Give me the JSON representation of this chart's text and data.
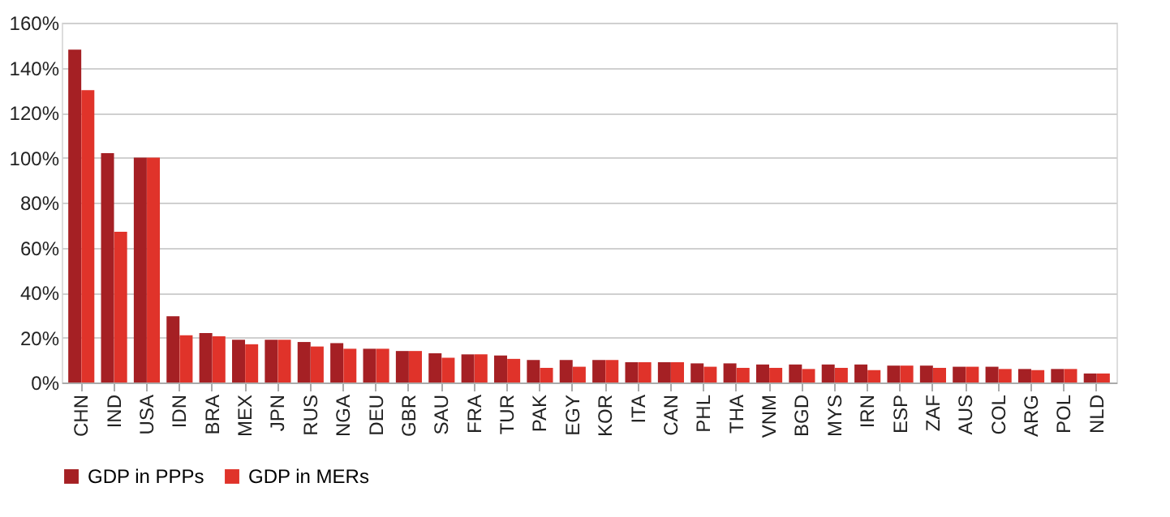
{
  "chart_data": {
    "type": "bar",
    "categories": [
      "CHN",
      "IND",
      "USA",
      "IDN",
      "BRA",
      "MEX",
      "JPN",
      "RUS",
      "NGA",
      "DEU",
      "GBR",
      "SAU",
      "FRA",
      "TUR",
      "PAK",
      "EGY",
      "KOR",
      "ITA",
      "CAN",
      "PHL",
      "THA",
      "VNM",
      "BGD",
      "MYS",
      "IRN",
      "ESP",
      "ZAF",
      "AUS",
      "COL",
      "ARG",
      "POL",
      "NLD"
    ],
    "series": [
      {
        "name": "GDP in PPPs",
        "color": "#a52024",
        "values": [
          148,
          102,
          100,
          29.5,
          22,
          19,
          19,
          18,
          17.5,
          15,
          14,
          13,
          12.5,
          12,
          10,
          10,
          10,
          9,
          9,
          8.5,
          8.5,
          8,
          8,
          8,
          8,
          7.5,
          7.5,
          7,
          7,
          6,
          6,
          4
        ]
      },
      {
        "name": "GDP in MERs",
        "color": "#e0332a",
        "values": [
          130,
          67,
          100,
          21,
          20.5,
          17,
          19,
          16,
          15,
          15,
          14,
          11,
          12.5,
          10.5,
          6.5,
          7,
          10,
          9,
          9,
          7,
          6.5,
          6.5,
          6,
          6.5,
          5.5,
          7.5,
          6.5,
          7,
          6,
          5.5,
          6,
          4
        ]
      }
    ],
    "ylim": [
      0,
      160
    ],
    "yticks": [
      {
        "value": 0,
        "label": "0%"
      },
      {
        "value": 20,
        "label": "20%"
      },
      {
        "value": 40,
        "label": "40%"
      },
      {
        "value": 60,
        "label": "60%"
      },
      {
        "value": 80,
        "label": "80%"
      },
      {
        "value": 100,
        "label": "100%"
      },
      {
        "value": 120,
        "label": "120%"
      },
      {
        "value": 140,
        "label": "140%"
      },
      {
        "value": 160,
        "label": "160%"
      }
    ],
    "grid": "y",
    "legend": "bottom"
  }
}
